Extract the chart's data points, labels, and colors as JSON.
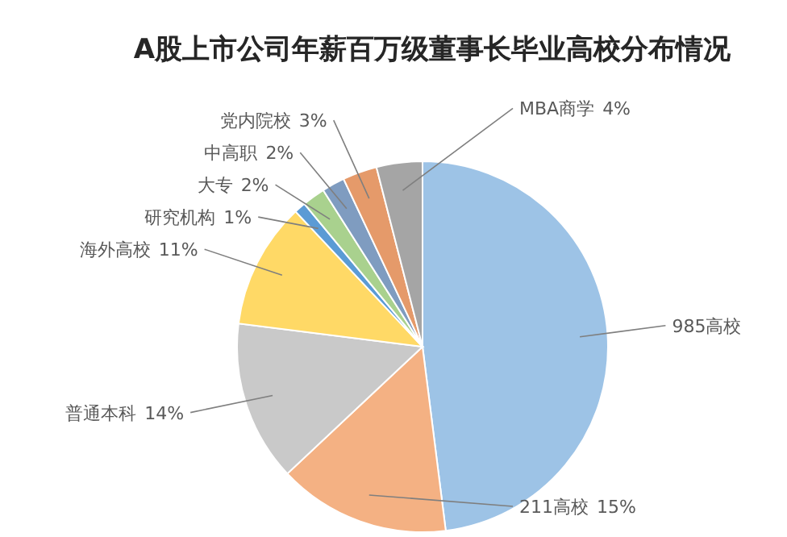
{
  "chart_data": {
    "type": "pie",
    "title": "A股上市公司年薪百万级董事长毕业高校分布情况",
    "categories": [
      "985高校",
      "211高校",
      "普通本科",
      "海外高校",
      "研究机构",
      "大专",
      "中高职",
      "党内院校",
      "MBA商学"
    ],
    "values": [
      48,
      15,
      14,
      11,
      1,
      2,
      2,
      3,
      4
    ],
    "value_labels": [
      null,
      "15%",
      "14%",
      "11%",
      "1%",
      "2%",
      "2%",
      "3%",
      "4%"
    ],
    "colors": [
      "#9dc3e6",
      "#f4b183",
      "#c9c9c9",
      "#ffd966",
      "#5b9bd5",
      "#a9d18e",
      "#7f9cc0",
      "#e59a6a",
      "#a5a5a5"
    ]
  }
}
